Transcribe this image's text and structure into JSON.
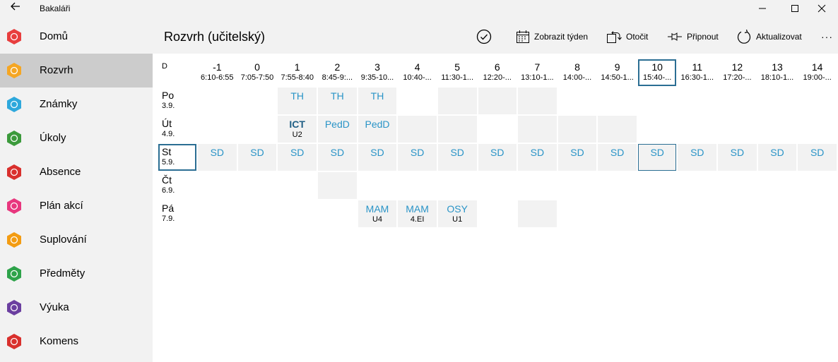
{
  "app": {
    "title": "Bakaláři"
  },
  "window": {
    "min": "—",
    "max": "☐",
    "close": "✕"
  },
  "sidebar": {
    "items": [
      {
        "label": "Domů",
        "icon": "home-icon",
        "color": "#e83e3e"
      },
      {
        "label": "Rozvrh",
        "icon": "timetable-icon",
        "color": "#f5a623"
      },
      {
        "label": "Známky",
        "icon": "grades-icon",
        "color": "#2ea8dc"
      },
      {
        "label": "Úkoly",
        "icon": "tasks-icon",
        "color": "#3c9a3c"
      },
      {
        "label": "Absence",
        "icon": "absence-icon",
        "color": "#d9302d"
      },
      {
        "label": "Plán akcí",
        "icon": "events-icon",
        "color": "#e8377e"
      },
      {
        "label": "Suplování",
        "icon": "substitution-icon",
        "color": "#f39c12"
      },
      {
        "label": "Předměty",
        "icon": "subjects-icon",
        "color": "#2ea34a"
      },
      {
        "label": "Výuka",
        "icon": "teaching-icon",
        "color": "#6b3fa0"
      },
      {
        "label": "Komens",
        "icon": "messages-icon",
        "color": "#d9302d"
      }
    ]
  },
  "header": {
    "title": "Rozvrh (učitelský)",
    "toolbar": {
      "show_week": "Zobrazit týden",
      "rotate": "Otočit",
      "pin": "Připnout",
      "refresh": "Aktualizovat",
      "more": "···"
    }
  },
  "timetable": {
    "corner": "D",
    "periods": [
      {
        "num": "-1",
        "time": "6:10-6:55"
      },
      {
        "num": "0",
        "time": "7:05-7:50"
      },
      {
        "num": "1",
        "time": "7:55-8:40"
      },
      {
        "num": "2",
        "time": "8:45-9:..."
      },
      {
        "num": "3",
        "time": "9:35-10..."
      },
      {
        "num": "4",
        "time": "10:40-..."
      },
      {
        "num": "5",
        "time": "11:30-1..."
      },
      {
        "num": "6",
        "time": "12:20-..."
      },
      {
        "num": "7",
        "time": "13:10-1..."
      },
      {
        "num": "8",
        "time": "14:00-..."
      },
      {
        "num": "9",
        "time": "14:50-1..."
      },
      {
        "num": "10",
        "time": "15:40-...",
        "current": true
      },
      {
        "num": "11",
        "time": "16:30-1..."
      },
      {
        "num": "12",
        "time": "17:20-..."
      },
      {
        "num": "13",
        "time": "18:10-1..."
      },
      {
        "num": "14",
        "time": "19:00-..."
      }
    ],
    "days": [
      {
        "name": "Po",
        "date": "3.9.",
        "cells": [
          {
            "bg": "w"
          },
          {
            "bg": "w"
          },
          {
            "bg": "g",
            "subj": "TH"
          },
          {
            "bg": "g",
            "subj": "TH"
          },
          {
            "bg": "g",
            "subj": "TH"
          },
          {
            "bg": "w"
          },
          {
            "bg": "g"
          },
          {
            "bg": "g"
          },
          {
            "bg": "g"
          },
          {
            "bg": "w"
          },
          {
            "bg": "w"
          },
          {
            "bg": "w"
          },
          {
            "bg": "w"
          },
          {
            "bg": "w"
          },
          {
            "bg": "w"
          },
          {
            "bg": "w"
          }
        ]
      },
      {
        "name": "Út",
        "date": "4.9.",
        "cells": [
          {
            "bg": "w"
          },
          {
            "bg": "w"
          },
          {
            "bg": "g",
            "subj": "ICT",
            "room": "U2",
            "bold": true
          },
          {
            "bg": "g",
            "subj": "PedD"
          },
          {
            "bg": "g",
            "subj": "PedD"
          },
          {
            "bg": "g"
          },
          {
            "bg": "g"
          },
          {
            "bg": "w"
          },
          {
            "bg": "g"
          },
          {
            "bg": "g"
          },
          {
            "bg": "g"
          },
          {
            "bg": "w"
          },
          {
            "bg": "w"
          },
          {
            "bg": "w"
          },
          {
            "bg": "w"
          },
          {
            "bg": "w"
          }
        ]
      },
      {
        "name": "St",
        "date": "5.9.",
        "selected": true,
        "cells": [
          {
            "bg": "g",
            "subj": "SD"
          },
          {
            "bg": "g",
            "subj": "SD"
          },
          {
            "bg": "g",
            "subj": "SD"
          },
          {
            "bg": "g",
            "subj": "SD"
          },
          {
            "bg": "g",
            "subj": "SD"
          },
          {
            "bg": "g",
            "subj": "SD"
          },
          {
            "bg": "g",
            "subj": "SD"
          },
          {
            "bg": "g",
            "subj": "SD"
          },
          {
            "bg": "g",
            "subj": "SD"
          },
          {
            "bg": "g",
            "subj": "SD"
          },
          {
            "bg": "g",
            "subj": "SD"
          },
          {
            "bg": "g",
            "subj": "SD",
            "hl": true
          },
          {
            "bg": "g",
            "subj": "SD"
          },
          {
            "bg": "g",
            "subj": "SD"
          },
          {
            "bg": "g",
            "subj": "SD"
          },
          {
            "bg": "g",
            "subj": "SD"
          }
        ]
      },
      {
        "name": "Čt",
        "date": "6.9.",
        "cells": [
          {
            "bg": "w"
          },
          {
            "bg": "w"
          },
          {
            "bg": "w"
          },
          {
            "bg": "g"
          },
          {
            "bg": "w"
          },
          {
            "bg": "w"
          },
          {
            "bg": "w"
          },
          {
            "bg": "w"
          },
          {
            "bg": "w"
          },
          {
            "bg": "w"
          },
          {
            "bg": "w"
          },
          {
            "bg": "w"
          },
          {
            "bg": "w"
          },
          {
            "bg": "w"
          },
          {
            "bg": "w"
          },
          {
            "bg": "w"
          }
        ]
      },
      {
        "name": "Pá",
        "date": "7.9.",
        "cells": [
          {
            "bg": "w"
          },
          {
            "bg": "w"
          },
          {
            "bg": "w"
          },
          {
            "bg": "w"
          },
          {
            "bg": "g",
            "subj": "MAM",
            "room": "U4"
          },
          {
            "bg": "g",
            "subj": "MAM",
            "room": "4.EI"
          },
          {
            "bg": "g",
            "subj": "OSY",
            "room": "U1"
          },
          {
            "bg": "w"
          },
          {
            "bg": "g"
          },
          {
            "bg": "w"
          },
          {
            "bg": "w"
          },
          {
            "bg": "w"
          },
          {
            "bg": "w"
          },
          {
            "bg": "w"
          },
          {
            "bg": "w"
          },
          {
            "bg": "w"
          }
        ]
      }
    ]
  }
}
